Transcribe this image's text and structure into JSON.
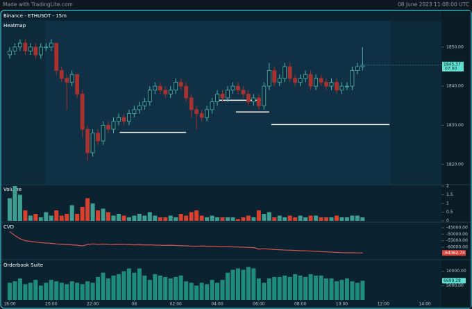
{
  "header": {
    "brand": "Made with TradingLite.com",
    "date": "08 June 2023 11:08:00 UTC"
  },
  "chart_data": [
    {
      "type": "candlestick",
      "title": "Binance - ETHUSDT - 15m",
      "subtitle": "Heatmap",
      "up_color": "#4db6ac",
      "down_color": "#a8322f",
      "x": [
        0,
        0.25,
        0.5,
        0.75,
        1,
        1.25,
        1.5,
        1.75,
        2,
        2.25,
        2.5,
        2.75,
        3,
        3.25,
        3.5,
        3.75,
        4,
        4.25,
        4.5,
        4.75,
        5,
        5.25,
        5.5,
        5.75,
        6,
        6.25,
        6.5,
        6.75,
        7,
        7.25,
        7.5,
        7.75,
        8,
        8.25,
        8.5,
        8.75,
        9,
        9.25,
        9.5,
        9.75,
        10,
        10.25,
        10.5,
        10.75,
        11,
        11.25,
        11.5,
        11.75,
        12,
        12.25,
        12.5,
        12.75,
        13,
        13.25,
        13.5,
        13.75,
        14,
        14.25,
        14.5,
        14.75,
        15,
        15.25,
        15.5,
        15.75,
        16,
        16.25,
        16.5,
        16.75,
        17
      ],
      "open": [
        1848,
        1849,
        1850,
        1851,
        1849,
        1850,
        1848,
        1850,
        1850,
        1851,
        1844,
        1842,
        1841,
        1843,
        1838,
        1829,
        1823,
        1828,
        1826,
        1830,
        1829,
        1831,
        1832,
        1831,
        1833,
        1834,
        1835,
        1836,
        1839,
        1840,
        1839,
        1838,
        1839,
        1841,
        1840,
        1837,
        1834,
        1833,
        1832,
        1834,
        1836,
        1838,
        1837,
        1839,
        1840,
        1839,
        1838,
        1836,
        1837,
        1835,
        1840,
        1844,
        1841,
        1842,
        1845,
        1842,
        1841,
        1842,
        1843,
        1840,
        1842,
        1841,
        1840,
        1841,
        1839,
        1840,
        1840,
        1844,
        1845
      ],
      "high": [
        1850,
        1851,
        1852,
        1852,
        1851,
        1851,
        1851,
        1851,
        1852,
        1851,
        1845,
        1843,
        1844,
        1843,
        1839,
        1830,
        1829,
        1829,
        1831,
        1831,
        1832,
        1833,
        1833,
        1834,
        1835,
        1836,
        1837,
        1840,
        1841,
        1841,
        1840,
        1840,
        1842,
        1842,
        1841,
        1838,
        1835,
        1834,
        1835,
        1837,
        1839,
        1839,
        1840,
        1841,
        1841,
        1840,
        1839,
        1838,
        1838,
        1841,
        1846,
        1845,
        1843,
        1846,
        1846,
        1843,
        1843,
        1844,
        1844,
        1843,
        1843,
        1842,
        1842,
        1842,
        1841,
        1841,
        1845,
        1846,
        1850
      ],
      "low": [
        1847,
        1848,
        1849,
        1848,
        1848,
        1847,
        1847,
        1849,
        1849,
        1843,
        1841,
        1834,
        1840,
        1837,
        1827,
        1821,
        1822,
        1825,
        1825,
        1828,
        1828,
        1830,
        1830,
        1830,
        1832,
        1833,
        1834,
        1835,
        1838,
        1838,
        1837,
        1837,
        1838,
        1839,
        1836,
        1832,
        1829,
        1831,
        1831,
        1833,
        1835,
        1836,
        1836,
        1838,
        1838,
        1837,
        1835,
        1835,
        1834,
        1834,
        1839,
        1840,
        1840,
        1841,
        1841,
        1840,
        1840,
        1841,
        1839,
        1839,
        1840,
        1839,
        1839,
        1838,
        1838,
        1839,
        1839,
        1843,
        1844
      ],
      "close": [
        1849,
        1850,
        1851,
        1849,
        1850,
        1848,
        1850,
        1850,
        1851,
        1844,
        1842,
        1841,
        1843,
        1838,
        1829,
        1823,
        1828,
        1826,
        1830,
        1829,
        1831,
        1832,
        1831,
        1833,
        1834,
        1835,
        1836,
        1839,
        1840,
        1839,
        1838,
        1839,
        1841,
        1840,
        1837,
        1834,
        1833,
        1832,
        1834,
        1836,
        1838,
        1837,
        1839,
        1840,
        1839,
        1838,
        1836,
        1837,
        1835,
        1840,
        1844,
        1841,
        1842,
        1845,
        1842,
        1841,
        1842,
        1843,
        1840,
        1842,
        1841,
        1840,
        1841,
        1839,
        1840,
        1840,
        1844,
        1845,
        1845.37
      ],
      "price_tag": "1845.37",
      "countdown": "07:00",
      "levels": [
        {
          "price": 1828.2,
          "from": 5.3,
          "to": 8.5
        },
        {
          "price": 1836.4,
          "from": 10.1,
          "to": 12.1
        },
        {
          "price": 1833.4,
          "from": 10.9,
          "to": 12.5
        },
        {
          "price": 1830.2,
          "from": 12.6,
          "to": 18.3
        }
      ],
      "xlim": [
        -0.4,
        20.8
      ],
      "xticks": [
        {
          "value": 0,
          "label": "18:00"
        },
        {
          "value": 2,
          "label": "20:00"
        },
        {
          "value": 4,
          "label": "22:00"
        },
        {
          "value": 6,
          "label": "08"
        },
        {
          "value": 8,
          "label": "02:00"
        },
        {
          "value": 10,
          "label": "04:00"
        },
        {
          "value": 12,
          "label": "06:00"
        },
        {
          "value": 14,
          "label": "08:00"
        },
        {
          "value": 16,
          "label": "10:00"
        },
        {
          "value": 18,
          "label": "12:00"
        },
        {
          "value": 20,
          "label": "14:00"
        }
      ],
      "ylim": [
        1815,
        1856.7
      ],
      "yticks": [
        {
          "value": 1850,
          "label": "1850.00"
        },
        {
          "value": 1840,
          "label": "1840.00"
        },
        {
          "value": 1830,
          "label": "1830.00"
        },
        {
          "value": 1820,
          "label": "1820.00"
        }
      ]
    },
    {
      "type": "bar",
      "title": "Volume",
      "up_color": "#3f9e92",
      "down_color": "#d8402f",
      "values": [
        1.3,
        2.0,
        1.5,
        0.6,
        0.3,
        0.4,
        0.2,
        0.5,
        0.3,
        0.6,
        0.3,
        0.4,
        0.9,
        0.4,
        0.8,
        1.3,
        1.0,
        0.6,
        0.7,
        0.5,
        0.3,
        0.4,
        0.3,
        0.2,
        0.3,
        0.4,
        0.3,
        0.5,
        0.3,
        0.2,
        0.2,
        0.3,
        0.2,
        0.4,
        0.3,
        0.5,
        0.6,
        0.3,
        0.2,
        0.3,
        0.2,
        0.2,
        0.2,
        0.2,
        0.1,
        0.2,
        0.3,
        0.2,
        0.6,
        0.4,
        0.5,
        0.2,
        0.3,
        0.2,
        0.3,
        0.2,
        0.3,
        0.2,
        0.3,
        0.3,
        0.2,
        0.2,
        0.2,
        0.3,
        0.2,
        0.2,
        0.3,
        0.3,
        0.2
      ],
      "ylim": [
        0,
        2
      ],
      "yticks": [
        2,
        1.5,
        1,
        0.5,
        0
      ]
    },
    {
      "type": "line",
      "title": "CVD",
      "color": "#d9534f",
      "values": [
        -48000,
        -51000,
        -53500,
        -55000,
        -55500,
        -56000,
        -56500,
        -56800,
        -57000,
        -57500,
        -57800,
        -58000,
        -58200,
        -58500,
        -59000,
        -58000,
        -57500,
        -57800,
        -57600,
        -57900,
        -58000,
        -57800,
        -57900,
        -58000,
        -58200,
        -58100,
        -58300,
        -58200,
        -58400,
        -58500,
        -58600,
        -58500,
        -58700,
        -58800,
        -59000,
        -59200,
        -59300,
        -59100,
        -59300,
        -59400,
        -59500,
        -59600,
        -59700,
        -59800,
        -59900,
        -60000,
        -60200,
        -60300,
        -61500,
        -61200,
        -61500,
        -61800,
        -62000,
        -62200,
        -62300,
        -62500,
        -62700,
        -62800,
        -63000,
        -63200,
        -63400,
        -63600,
        -63800,
        -64000,
        -64200,
        -64300,
        -64300,
        -64400,
        -64462.74
      ],
      "last_label": "-64462.74",
      "ylim": [
        -68600,
        -41800
      ],
      "yticks": [
        {
          "value": -45000,
          "label": "-45000.00"
        },
        {
          "value": -50000,
          "label": "-50000.00"
        },
        {
          "value": -55000,
          "label": "-55000.00"
        },
        {
          "value": -60000,
          "label": "-60000.00"
        }
      ]
    },
    {
      "type": "bar",
      "title": "Orderbook Suite",
      "color": "#1f8c80",
      "values": [
        6000,
        6500,
        7500,
        5500,
        6000,
        7000,
        5000,
        6000,
        7000,
        6500,
        6000,
        5500,
        6500,
        6000,
        5500,
        6500,
        6000,
        8000,
        9500,
        7500,
        8500,
        9000,
        10000,
        11000,
        9500,
        11000,
        8500,
        7000,
        9000,
        8500,
        8000,
        7500,
        8000,
        8500,
        6500,
        6000,
        5000,
        6000,
        5500,
        7000,
        6000,
        7000,
        9500,
        10500,
        11000,
        10500,
        11500,
        11000,
        7500,
        6000,
        7500,
        8000,
        8000,
        8500,
        8000,
        9000,
        8500,
        8000,
        9000,
        8500,
        8500,
        7500,
        7500,
        6500,
        7000,
        7500,
        6500,
        6000,
        6699.28
      ],
      "last_label": "6699.28",
      "ylim": [
        0,
        13300
      ],
      "yticks": [
        {
          "value": 10000,
          "label": "10000.00"
        },
        {
          "value": 5000,
          "label": "5000.00"
        }
      ]
    }
  ]
}
